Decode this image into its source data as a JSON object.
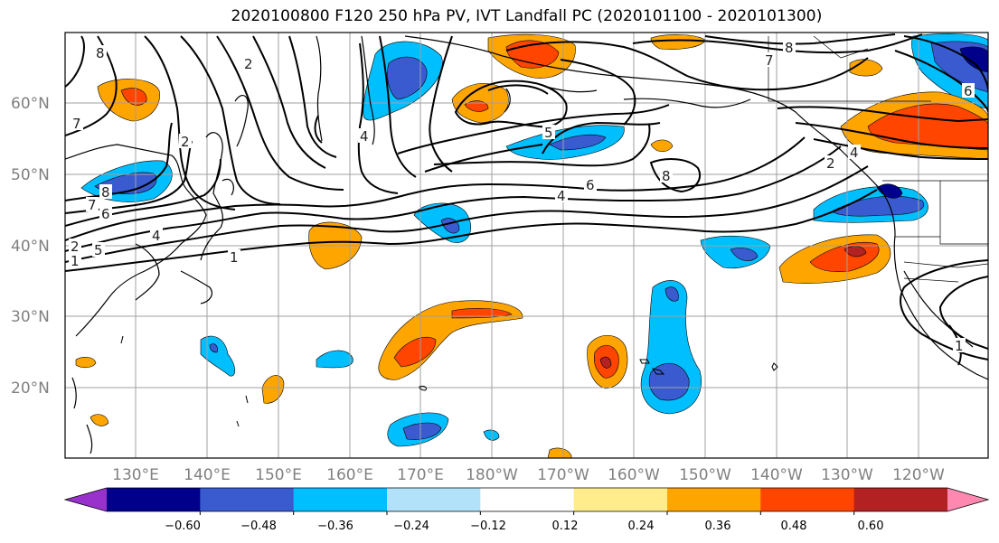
{
  "title": "2020100800 F120 250 hPa PV, IVT Landfall PC (2020101100 - 2020101300)",
  "lat_labels": [
    "60°N",
    "50°N",
    "40°N",
    "30°N",
    "20°N"
  ],
  "lon_labels": [
    "130°E",
    "140°E",
    "150°E",
    "160°E",
    "170°E",
    "180°W",
    "170°W",
    "160°W",
    "150°W",
    "140°W",
    "130°W",
    "120°W"
  ],
  "contour_labels": [
    "8",
    "7",
    "6",
    "2",
    "1",
    "7",
    "8",
    "7",
    "6",
    "4",
    "8",
    "5",
    "2",
    "2",
    "6",
    "4",
    "8",
    "2",
    "1",
    "1",
    "5",
    "4",
    "4"
  ],
  "colorbar": {
    "ticks": [
      "−0.60",
      "−0.48",
      "−0.36",
      "−0.24",
      "−0.12",
      "0.12",
      "0.24",
      "0.36",
      "0.48",
      "0.60"
    ],
    "colors": [
      "#9932cc",
      "#00008b",
      "#3a5bd0",
      "#00bfff",
      "#b2e2fa",
      "#ffffff",
      "#ffec8b",
      "#ffa500",
      "#ff4500",
      "#b22222",
      "#ff88b0"
    ]
  }
}
